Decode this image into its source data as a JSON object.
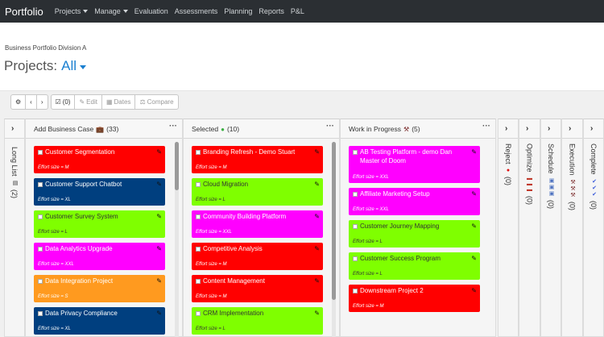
{
  "nav": {
    "brand": "Portfolio",
    "items": [
      {
        "label": "Projects",
        "caret": true
      },
      {
        "label": "Manage",
        "caret": true
      },
      {
        "label": "Evaluation",
        "caret": false
      },
      {
        "label": "Assessments",
        "caret": false
      },
      {
        "label": "Planning",
        "caret": false
      },
      {
        "label": "Reports",
        "caret": false
      },
      {
        "label": "P&L",
        "caret": false
      }
    ]
  },
  "header": {
    "division": "Business Portfolio Division A",
    "projects_label": "Projects:",
    "filter_value": "All"
  },
  "toolbar": {
    "selected_count": "(0)",
    "edit_label": "Edit",
    "dates_label": "Dates",
    "compare_label": "Compare"
  },
  "long_list": {
    "label": "Long List",
    "count": "(2)"
  },
  "columns": [
    {
      "title": "Add Business Case",
      "count": "(33)",
      "icon": "briefcase-icon",
      "cards": [
        {
          "title": "Customer Segmentation",
          "effort": "Effort size = M",
          "color": "#ff0000",
          "text": "#ffffff"
        },
        {
          "title": "Customer Support Chatbot",
          "effort": "Effort size = XL",
          "color": "#003f7f",
          "text": "#ffffff"
        },
        {
          "title": "Customer Survey System",
          "effort": "Effort size = L",
          "color": "#7fff00",
          "text": "#333333"
        },
        {
          "title": "Data Analytics Upgrade",
          "effort": "Effort size = XXL",
          "color": "#ff00ff",
          "text": "#ffffff"
        },
        {
          "title": "Data Integration Project",
          "effort": "Effort size = S",
          "color": "#ff9a1f",
          "text": "#ffffff"
        },
        {
          "title": "Data Privacy Compliance",
          "effort": "Effort size = XL",
          "color": "#003f7f",
          "text": "#ffffff"
        }
      ]
    },
    {
      "title": "Selected",
      "count": "(10)",
      "icon": "green-circle-icon",
      "cards": [
        {
          "title": "Branding Refresh - Demo Stuart",
          "effort": "Effort size = M",
          "color": "#ff0000",
          "text": "#ffffff"
        },
        {
          "title": "Cloud Migration",
          "effort": "Effort size = L",
          "color": "#7fff00",
          "text": "#333333"
        },
        {
          "title": "Community Building Platform",
          "effort": "Effort size = XXL",
          "color": "#ff00ff",
          "text": "#ffffff"
        },
        {
          "title": "Competitive Analysis",
          "effort": "Effort size = M",
          "color": "#ff0000",
          "text": "#ffffff"
        },
        {
          "title": "Content Management",
          "effort": "Effort size = M",
          "color": "#ff0000",
          "text": "#ffffff"
        },
        {
          "title": "CRM Implementation",
          "effort": "Effort size = L",
          "color": "#7fff00",
          "text": "#333333"
        }
      ]
    },
    {
      "title": "Work in Progress",
      "count": "(5)",
      "icon": "tools-icon",
      "cards": [
        {
          "title": "AB Testing Platform - demo Dan Master of Doom",
          "effort": "Effort size = XXL",
          "color": "#ff00ff",
          "text": "#ffffff"
        },
        {
          "title": "Affiliate Marketing Setup",
          "effort": "Effort size = XXL",
          "color": "#ff00ff",
          "text": "#ffffff"
        },
        {
          "title": "Customer Journey Mapping",
          "effort": "Effort size = L",
          "color": "#7fff00",
          "text": "#333333"
        },
        {
          "title": "Customer Success Program",
          "effort": "Effort size = L",
          "color": "#7fff00",
          "text": "#333333"
        },
        {
          "title": "Downstream Project 2",
          "effort": "Effort size = M",
          "color": "#ff0000",
          "text": "#ffffff"
        }
      ]
    }
  ],
  "collapsed_columns": [
    {
      "label": "Reject",
      "count": "(0)",
      "icon": "red-circle-icon"
    },
    {
      "label": "Optimize",
      "count": "(0)",
      "icon": "cars-icon"
    },
    {
      "label": "Schedule",
      "count": "(0)",
      "icon": "calendar-icon"
    },
    {
      "label": "Execution",
      "count": "(0)",
      "icon": "tools-icon"
    },
    {
      "label": "Complete",
      "count": "(0)",
      "icon": "checkmark-icon"
    }
  ]
}
